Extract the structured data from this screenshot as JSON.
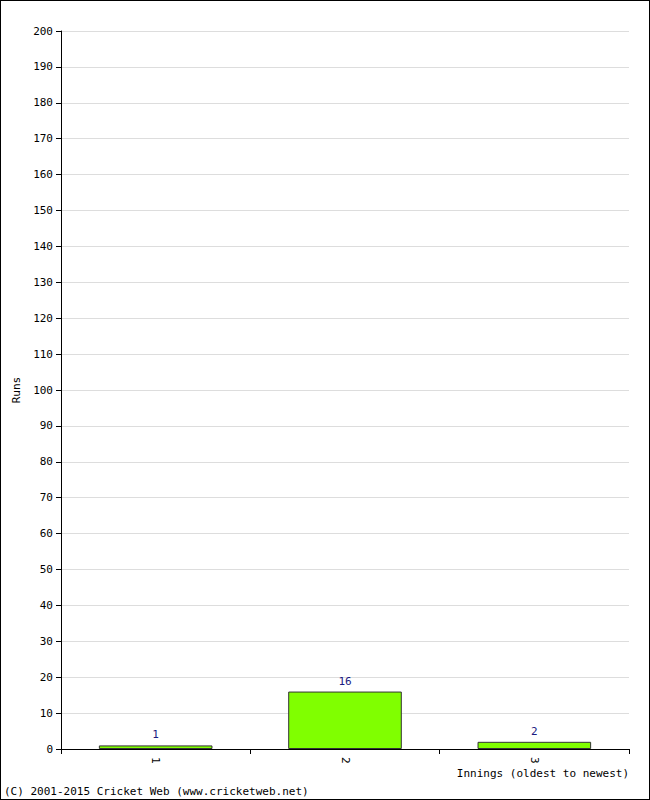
{
  "chart_data": {
    "type": "bar",
    "xlabel": "Innings (oldest to newest)",
    "ylabel": "Runs",
    "annotations": [
      "(C) 2001-2015 Cricket Web (www.cricketweb.net)"
    ],
    "categories": [
      "1",
      "2",
      "3"
    ],
    "values": [
      1,
      16,
      2
    ],
    "color": "#80ff00",
    "ylim": [
      0,
      200
    ],
    "yticks": [
      0,
      10,
      20,
      30,
      40,
      50,
      60,
      70,
      80,
      90,
      100,
      110,
      120,
      130,
      140,
      150,
      160,
      170,
      180,
      190,
      200
    ],
    "grid": true,
    "data_labels": true
  }
}
